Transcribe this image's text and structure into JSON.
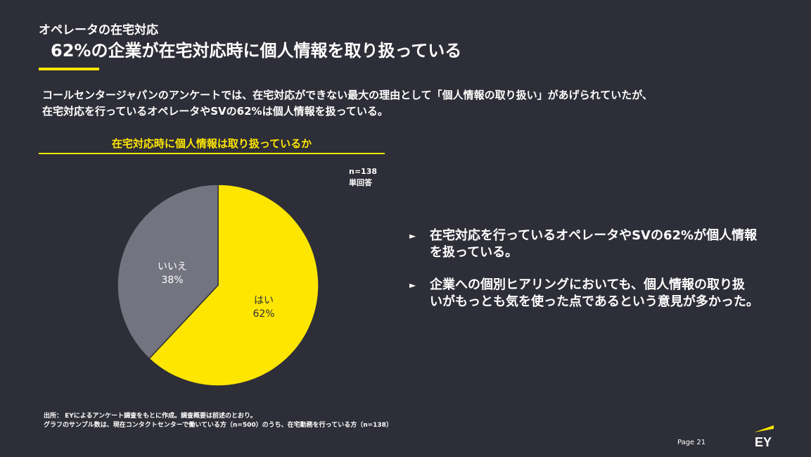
{
  "header": {
    "kicker": "オペレータの在宅対応",
    "headline": "62%の企業が在宅対応時に個人情報を取り扱っている"
  },
  "intro": {
    "line1": "コールセンタージャパンのアンケートでは、在宅対応ができない最大の理由として「個人情報の取り扱い」があげられていたが、",
    "line2": "在宅対応を行っているオペレータやSVの62%は個人情報を扱っている。"
  },
  "chart_data": {
    "type": "pie",
    "title": "在宅対応時に個人情報は取り扱っているか",
    "note_n": "n=138",
    "note_type": "単回答",
    "slices": [
      {
        "label": "はい",
        "value": 62,
        "display": "62%",
        "color": "#ffe600"
      },
      {
        "label": "いいえ",
        "value": 38,
        "display": "38%",
        "color": "#747480"
      }
    ]
  },
  "bullets": [
    {
      "line1": "在宅対応を行っているオペレータやSVの62%が個人情報",
      "line2": "を扱っている。"
    },
    {
      "line1": "企業への個別ヒアリングにおいても、個人情報の取り扱",
      "line2": "いがもっとも気を使った点であるという意見が多かった。"
    }
  ],
  "footnote": {
    "line1": "出所： EYによるアンケート調査をもとに作成。調査概要は前述のとおり。",
    "line2": "グラフのサンプル数は、現在コンタクトセンターで働いている方（n=500）のうち、在宅勤務を行っている方（n=138）"
  },
  "footer": {
    "page": "Page 21",
    "logo_text": "EY"
  },
  "colors": {
    "background": "#2e2e38",
    "accent": "#ffe600",
    "secondary": "#747480"
  }
}
